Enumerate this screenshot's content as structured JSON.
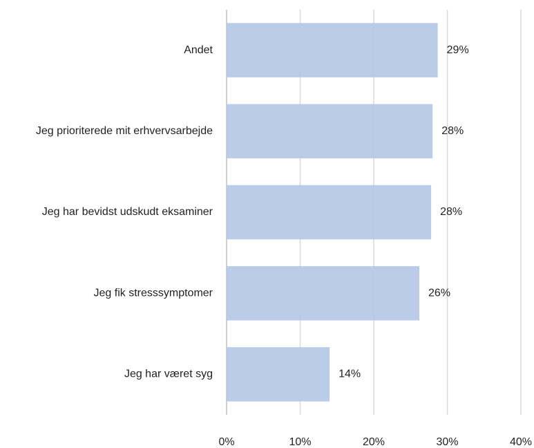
{
  "chart_data": {
    "type": "bar",
    "orientation": "horizontal",
    "categories": [
      "Andet",
      "Jeg prioriterede mit erhvervsarbejde",
      "Jeg har bevidst udskudt eksaminer",
      "Jeg fik stresssymptomer",
      "Jeg har været syg"
    ],
    "values": [
      28.7,
      28.0,
      27.8,
      26.2,
      14.0
    ],
    "value_labels": [
      "29%",
      "28%",
      "28%",
      "26%",
      "14%"
    ],
    "color": "#b4c7e7",
    "xlim": [
      0,
      40
    ],
    "xticks": [
      {
        "value": 0,
        "label": "0%"
      },
      {
        "value": 10,
        "label": "10%"
      },
      {
        "value": 20,
        "label": "20%"
      },
      {
        "value": 30,
        "label": "30%"
      },
      {
        "value": 40,
        "label": "40%"
      }
    ],
    "grid": true
  }
}
